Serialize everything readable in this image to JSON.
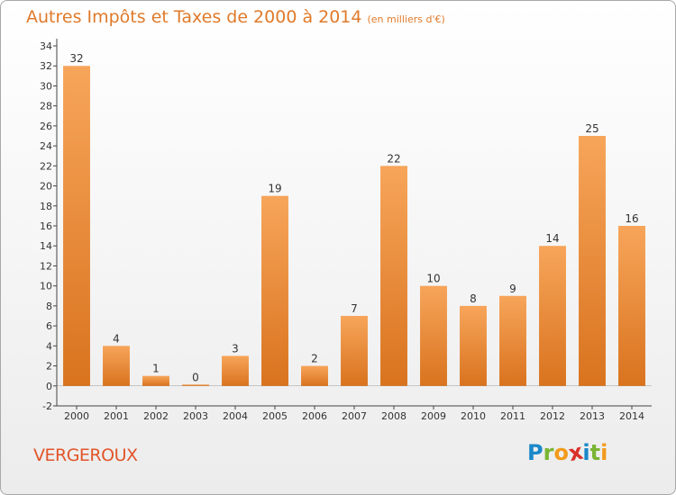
{
  "title": "Autres Impôts et Taxes de 2000 à 2014",
  "title_unit": "(en milliers d'€)",
  "commune": "VERGEROUX",
  "logo": {
    "letters": [
      "P",
      "r",
      "o",
      "x",
      "i",
      "t",
      "i"
    ],
    "colors": [
      "#1a88c9",
      "#7ab532",
      "#f29a1b",
      "#d9302a",
      "#1a88c9",
      "#7ab532",
      "#f29a1b"
    ]
  },
  "colors": {
    "bar_light": "#f7a55a",
    "bar_dark": "#d9731e",
    "title": "#e07a2a",
    "commune": "#e2552a"
  },
  "chart_data": {
    "type": "bar",
    "title": "Autres Impôts et Taxes de 2000 à 2014",
    "categories": [
      "2000",
      "2001",
      "2002",
      "2003",
      "2004",
      "2005",
      "2006",
      "2007",
      "2008",
      "2009",
      "2010",
      "2011",
      "2012",
      "2013",
      "2014"
    ],
    "values": [
      32,
      4,
      1,
      0,
      3,
      19,
      2,
      7,
      22,
      10,
      8,
      9,
      14,
      25,
      16
    ],
    "ylim": [
      -2,
      34
    ],
    "yticks": [
      -2,
      0,
      2,
      4,
      6,
      8,
      10,
      12,
      14,
      16,
      18,
      20,
      22,
      24,
      26,
      28,
      30,
      32,
      34
    ],
    "grid": false,
    "data_labels": true
  }
}
